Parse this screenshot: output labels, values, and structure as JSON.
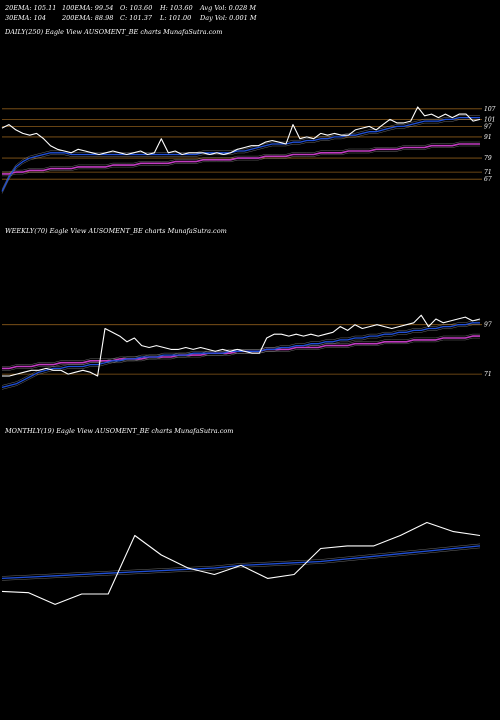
{
  "header": {
    "ema20": "20EMA: 105.11",
    "ema100": "100EMA: 99.54",
    "open": "O: 103.60",
    "high": "H: 103.60",
    "avg_vol": "Avg Vol: 0.028 M",
    "ema30": "30EMA: 104",
    "ema200": "200EMA: 88.98",
    "close": "C: 101.37",
    "low": "L: 101.00",
    "day_vol": "Day Vol: 0.001 M"
  },
  "colors": {
    "background": "#000000",
    "price": "#ffffff",
    "ema_short": "#1f4fd8",
    "ema_long": "#c23cc2",
    "level_line": "#8a5a1a",
    "ema_grey": "#b0b0b0"
  },
  "chart_data": [
    {
      "type": "line",
      "title": "DAILY(250) Eagle  View  AUSOMENT_BE charts MunafaSutra.com",
      "ylim": [
        58,
        112
      ],
      "level_labels": [
        "107",
        "101",
        "97",
        "91",
        "79",
        "71",
        "67"
      ],
      "levels": [
        107,
        101,
        97,
        91,
        79,
        71,
        67
      ],
      "series": [
        {
          "values": [
            96,
            98,
            95,
            93,
            92,
            93,
            90,
            86,
            84,
            83,
            82,
            84,
            83,
            82,
            81,
            82,
            83,
            82,
            81,
            82,
            83,
            81,
            82,
            90,
            82,
            83,
            81,
            82,
            82,
            82,
            81,
            82,
            81,
            82,
            84,
            85,
            86,
            86,
            88,
            89,
            88,
            87,
            98,
            90,
            91,
            90,
            93,
            92,
            93,
            92,
            92,
            95,
            96,
            97,
            95,
            98,
            101,
            99,
            99,
            100,
            108,
            103,
            104,
            102,
            104,
            102,
            104,
            104,
            100,
            101
          ]
        },
        {
          "values": [
            60,
            68,
            74,
            77,
            79,
            80,
            81,
            82,
            82,
            82,
            81,
            81,
            81,
            81,
            81,
            81,
            81,
            81,
            81,
            81,
            81,
            81,
            81,
            81,
            81,
            81,
            81,
            81,
            81,
            82,
            82,
            82,
            82,
            82,
            83,
            83,
            84,
            85,
            86,
            87,
            87,
            87,
            88,
            88,
            89,
            89,
            90,
            90,
            91,
            91,
            92,
            92,
            93,
            94,
            94,
            95,
            96,
            97,
            97,
            98,
            99,
            100,
            100,
            100,
            101,
            101,
            102,
            102,
            102,
            102
          ]
        },
        {
          "values": [
            70,
            70,
            71,
            71,
            72,
            72,
            72,
            73,
            73,
            73,
            73,
            74,
            74,
            74,
            74,
            74,
            75,
            75,
            75,
            75,
            76,
            76,
            76,
            76,
            76,
            77,
            77,
            77,
            77,
            78,
            78,
            78,
            78,
            78,
            79,
            79,
            79,
            79,
            80,
            80,
            80,
            80,
            81,
            81,
            81,
            81,
            82,
            82,
            82,
            82,
            83,
            83,
            83,
            83,
            84,
            84,
            84,
            84,
            85,
            85,
            85,
            85,
            86,
            86,
            86,
            86,
            87,
            87,
            87,
            87
          ]
        }
      ]
    },
    {
      "type": "line",
      "title": "WEEKLY(70) Eagle  View  AUSOMENT_BE charts MunafaSutra.com",
      "ylim": [
        60,
        110
      ],
      "level_labels": [
        "97",
        "71"
      ],
      "levels": [
        97,
        71
      ],
      "series": [
        {
          "values": [
            70,
            70,
            71,
            72,
            73,
            73,
            74,
            73,
            73,
            71,
            72,
            73,
            72,
            70,
            95,
            93,
            91,
            88,
            90,
            86,
            85,
            86,
            85,
            84,
            84,
            85,
            84,
            85,
            84,
            83,
            84,
            83,
            84,
            83,
            82,
            82,
            90,
            92,
            92,
            91,
            92,
            91,
            92,
            91,
            92,
            93,
            96,
            94,
            97,
            95,
            96,
            97,
            96,
            95,
            96,
            97,
            98,
            102,
            96,
            100,
            98,
            99,
            100,
            101,
            99,
            100
          ]
        },
        {
          "values": [
            64,
            65,
            66,
            68,
            70,
            72,
            73,
            74,
            74,
            75,
            75,
            75,
            76,
            76,
            77,
            78,
            78,
            79,
            79,
            80,
            80,
            80,
            81,
            81,
            81,
            81,
            82,
            82,
            82,
            82,
            82,
            83,
            83,
            83,
            83,
            83,
            84,
            84,
            85,
            85,
            86,
            86,
            87,
            87,
            88,
            88,
            89,
            89,
            90,
            90,
            91,
            91,
            92,
            92,
            93,
            93,
            94,
            94,
            95,
            95,
            96,
            96,
            97,
            97,
            98,
            98
          ]
        },
        {
          "values": [
            74,
            74,
            75,
            75,
            75,
            76,
            76,
            76,
            77,
            77,
            77,
            77,
            78,
            78,
            78,
            78,
            79,
            79,
            79,
            79,
            80,
            80,
            80,
            80,
            81,
            81,
            81,
            81,
            82,
            82,
            82,
            82,
            83,
            83,
            83,
            83,
            84,
            84,
            84,
            84,
            85,
            85,
            85,
            85,
            86,
            86,
            86,
            86,
            87,
            87,
            87,
            87,
            88,
            88,
            88,
            88,
            89,
            89,
            89,
            89,
            90,
            90,
            90,
            90,
            91,
            91
          ]
        }
      ]
    },
    {
      "type": "line",
      "title": "MONTHLY(19) Eagle  View  AUSOMENT_BE charts MunafaSutra.com",
      "ylim": [
        40,
        140
      ],
      "series": [
        {
          "values": [
            62,
            61,
            52,
            60,
            60,
            105,
            90,
            80,
            75,
            82,
            72,
            75,
            95,
            97,
            97,
            105,
            115,
            108,
            105
          ]
        },
        {
          "values": [
            72,
            73,
            74,
            75,
            76,
            77,
            78,
            79,
            80,
            82,
            83,
            84,
            85,
            87,
            89,
            91,
            93,
            95,
            97
          ]
        }
      ]
    }
  ]
}
